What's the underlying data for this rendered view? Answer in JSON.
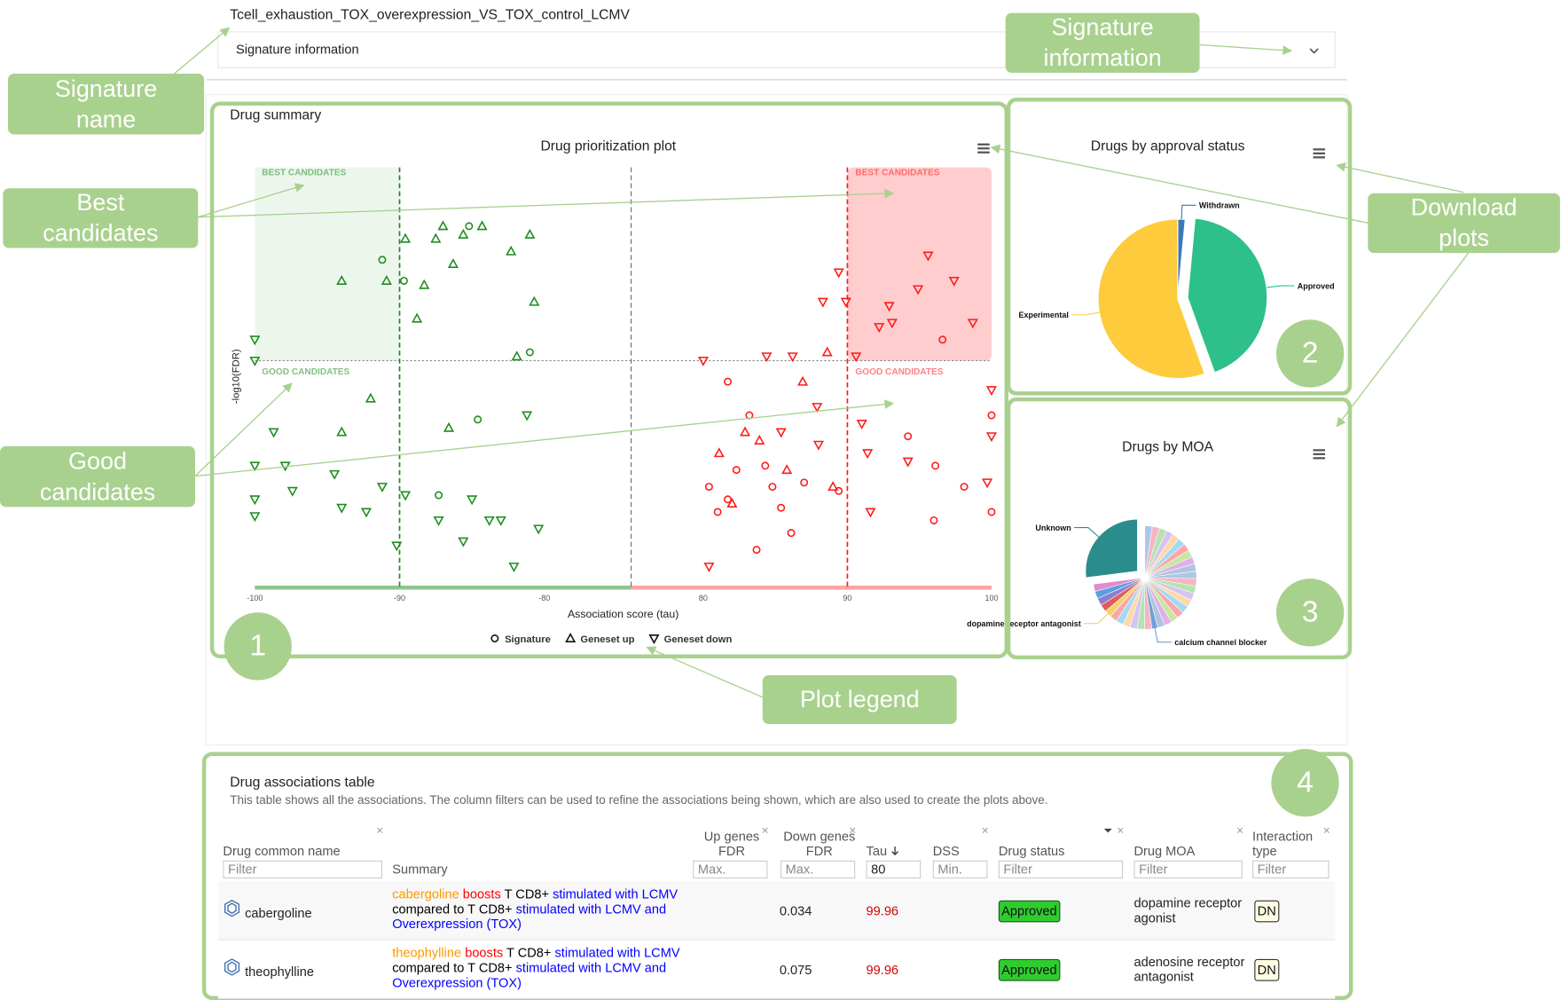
{
  "signature": {
    "name": "Tcell_exhaustion_TOX_overexpression_VS_TOX_control_LCMV",
    "info_label": "Signature information"
  },
  "drug_summary": {
    "title": "Drug summary"
  },
  "annotations": {
    "signature_name": "Signature name",
    "signature_information": "Signature information",
    "best_candidates": "Best candidates",
    "good_candidates": "Good candidates",
    "download_plots": "Download plots",
    "plot_legend": "Plot legend",
    "numbers": [
      "1",
      "2",
      "3",
      "4"
    ]
  },
  "chart_data": [
    {
      "type": "scatter",
      "title": "Drug prioritization plot",
      "xlabel": "Association score (tau)",
      "ylabel": "-log10(FDR)",
      "xlim_segments": [
        [
          -100,
          -74
        ],
        [
          75,
          100
        ]
      ],
      "xticks": [
        -100,
        -90,
        -80,
        80,
        90,
        100
      ],
      "ylim": [
        0,
        10
      ],
      "x_thresholds": [
        -90,
        90
      ],
      "y_threshold": 5.4,
      "region_labels": {
        "best": "BEST CANDIDATES",
        "good": "GOOD CANDIDATES"
      },
      "neg_color": "#1e8c1e",
      "pos_color": "#ff1a1a",
      "series": [
        {
          "name": "Signature",
          "marker": "circle",
          "x": [
            -91.2,
            -89.7,
            -85.2,
            -81.0,
            -84.6,
            -87.3,
            81.7,
            83.2,
            80.4,
            82.3,
            84.3,
            83.7,
            86.1,
            87.0,
            89.4,
            94.2,
            96.1,
            98.1,
            96.0,
            100,
            100,
            96.6,
            81.7,
            84.8,
            81.0,
            85.4
          ],
          "values": [
            7.8,
            7.3,
            8.6,
            5.6,
            4.0,
            2.2,
            4.9,
            4.1,
            2.4,
            2.8,
            2.9,
            0.9,
            1.3,
            2.5,
            2.3,
            3.6,
            2.9,
            2.4,
            1.6,
            1.8,
            4.1,
            5.9,
            2.1,
            2.4,
            1.8,
            1.9
          ]
        },
        {
          "name": "Geneset up",
          "marker": "triangle-up",
          "x": [
            -94.0,
            -90.9,
            -89.6,
            -87.5,
            -87.0,
            -85.6,
            -84.3,
            -82.3,
            -81.0,
            -86.3,
            -88.3,
            -80.7,
            -88.8,
            -81.9,
            -92.0,
            -94.0,
            -86.6,
            86.9,
            88.6,
            89.0,
            82.9,
            81.1,
            85.8,
            83.9,
            82.0
          ],
          "values": [
            7.3,
            7.3,
            8.3,
            8.3,
            8.6,
            8.4,
            8.6,
            8.0,
            8.4,
            7.7,
            7.2,
            6.8,
            6.4,
            5.5,
            4.5,
            3.7,
            3.8,
            4.9,
            5.6,
            2.4,
            3.7,
            3.2,
            2.8,
            3.5,
            2.0
          ]
        },
        {
          "name": "Geneset down",
          "marker": "triangle-down",
          "x": [
            -100,
            -100,
            -98.7,
            -100,
            -97.9,
            -100,
            -100,
            -97.4,
            -94.5,
            -94.0,
            -92.3,
            -91.2,
            -90.2,
            -89.6,
            -87.3,
            -85.6,
            -85.0,
            -83.8,
            -82.1,
            -81.2,
            -80.4,
            -83.0,
            89.4,
            95.6,
            97.4,
            94.9,
            92.9,
            98.7,
            93.1,
            88.3,
            89.9,
            84.4,
            80.0,
            86.2,
            90.6,
            92.2,
            100,
            100,
            94.2,
            91.4,
            91.6,
            99.7,
            80.4,
            85.4,
            88.0,
            91.0,
            87.9
          ],
          "values": [
            5.9,
            5.4,
            3.7,
            2.9,
            2.9,
            2.1,
            1.7,
            2.3,
            2.7,
            1.9,
            1.8,
            2.4,
            1.0,
            2.2,
            1.6,
            1.1,
            2.1,
            1.6,
            0.5,
            4.1,
            1.4,
            1.6,
            7.5,
            7.9,
            7.3,
            7.1,
            6.7,
            6.3,
            6.3,
            6.8,
            6.8,
            5.5,
            5.4,
            5.5,
            5.5,
            6.2,
            4.7,
            3.6,
            3.0,
            3.2,
            1.8,
            2.5,
            0.5,
            3.7,
            3.4,
            3.9,
            4.3
          ]
        }
      ]
    },
    {
      "type": "pie",
      "title": "Drugs by approval status",
      "categories": [
        "Withdrawn",
        "Approved",
        "Experimental"
      ],
      "values": [
        1.5,
        43,
        55.5
      ],
      "colors": [
        "#3c78b5",
        "#2ec08a",
        "#fdcb3c"
      ],
      "sliced_index": 1
    },
    {
      "type": "pie",
      "title": "Drugs by MOA",
      "categories": [
        null,
        null,
        null,
        null,
        null,
        null,
        null,
        null,
        null,
        null,
        null,
        null,
        null,
        null,
        null,
        null,
        null,
        null,
        null,
        null,
        "calcium channel blocker",
        null,
        null,
        null,
        null,
        null,
        null,
        "dopamine receptor antagonist",
        null,
        null,
        null,
        null,
        "Unknown"
      ],
      "values": [
        2.3,
        2.3,
        2.3,
        2.3,
        2.3,
        2.3,
        2.3,
        2.3,
        2.3,
        2.3,
        2.3,
        2.3,
        2.3,
        2.3,
        2.3,
        2.3,
        2.3,
        2.3,
        2.3,
        2.3,
        1.8,
        2.3,
        2.3,
        2.3,
        2.3,
        2.3,
        2.3,
        2.2,
        2.3,
        2.3,
        2.3,
        2.3,
        27
      ],
      "colors": [
        "#aec7e8",
        "#f4b6c2",
        "#b5e3b1",
        "#d4c4f0",
        "#ffd8a8",
        "#a3d9f5",
        "#f7a8a8",
        "#c9e6a1",
        "#e0b0e8",
        "#b0c4de",
        "#aec7e8",
        "#f4b6c2",
        "#b5e3b1",
        "#d4c4f0",
        "#ffd8a8",
        "#a3d9f5",
        "#f7a8a8",
        "#c9e6a1",
        "#e0b0e8",
        "#b0c4de",
        "#6f9fd8",
        "#f4b6c2",
        "#b5e3b1",
        "#d4c4f0",
        "#ffd8a8",
        "#a3d9f5",
        "#f7a8a8",
        "#f1d36b",
        "#e25c5c",
        "#8a7fd1",
        "#5aa0e0",
        "#e08ad0",
        "#2b8c8c"
      ],
      "sliced_index": 32
    }
  ],
  "table": {
    "title": "Drug associations table",
    "description": "This table shows all the associations. The column filters can be used to refine the associations being shown, which are also used to create the plots above.",
    "columns": [
      {
        "label": "Drug common name",
        "filter": "Filter"
      },
      {
        "label": "Summary"
      },
      {
        "label": "Up genes FDR",
        "filter": "Max."
      },
      {
        "label": "Down genes FDR",
        "filter": "Max."
      },
      {
        "label": "Tau",
        "filter_value": 80
      },
      {
        "label": "DSS",
        "filter": "Min."
      },
      {
        "label": "Drug status",
        "filter": "Filter"
      },
      {
        "label": "Drug MOA",
        "filter": "Filter"
      },
      {
        "label": "Interaction type",
        "filter": "Filter"
      }
    ],
    "rows": [
      {
        "name": "cabergoline",
        "summary": [
          {
            "text": "cabergoline",
            "color": "#ff9900"
          },
          {
            "text": "boosts",
            "color": "#ff0000"
          },
          {
            "text": "T CD8+",
            "color": "#000000"
          },
          {
            "text": "stimulated with LCMV",
            "color": "#0000ff"
          },
          {
            "text": "compared to T CD8+",
            "color": "#000000"
          },
          {
            "text": "stimulated with LCMV and Overexpression (TOX)",
            "color": "#0000ff"
          }
        ],
        "down_fdr": 0.034,
        "tau": 99.96,
        "status": "Approved",
        "moa": "dopamine receptor agonist",
        "interaction": "DN"
      },
      {
        "name": "theophylline",
        "summary": [
          {
            "text": "theophylline",
            "color": "#ff9900"
          },
          {
            "text": "boosts",
            "color": "#ff0000"
          },
          {
            "text": "T CD8+",
            "color": "#000000"
          },
          {
            "text": "stimulated with LCMV",
            "color": "#0000ff"
          },
          {
            "text": "compared to T CD8+",
            "color": "#000000"
          },
          {
            "text": "stimulated with LCMV and Overexpression (TOX)",
            "color": "#0000ff"
          }
        ],
        "down_fdr": 0.075,
        "tau": 99.96,
        "status": "Approved",
        "moa": "adenosine receptor antagonist",
        "interaction": "DN"
      }
    ]
  }
}
